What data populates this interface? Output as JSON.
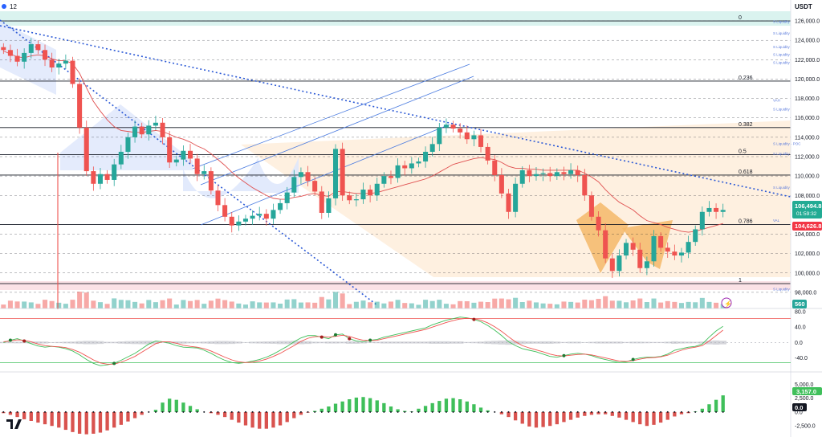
{
  "header": {
    "interval": "12",
    "currency": "USDT"
  },
  "colors": {
    "up": "#26a69a",
    "down": "#ef5350",
    "fib": "#131722",
    "liq": "#5b7bdc",
    "trend": "#2b59d6",
    "channel": "#4a7be0",
    "ema": "#e05050",
    "price_box": "#22ab94",
    "prev_box": "#f23645",
    "wedge_fill": "#dde6fb",
    "zone_fill": "#fdebd6",
    "pattern_fill": "#f4b868",
    "top_band": "#d3f1ec",
    "bottom_band": "#fadde2",
    "macd_pos": "#3fbf5a",
    "macd_neg": "#d9534f"
  },
  "chart_data": [
    {
      "type": "candlestick",
      "title": "",
      "ylim": [
        96500,
        127500
      ],
      "y_ticks": [
        "126,000.0",
        "124,000.0",
        "122,000.0",
        "120,000.0",
        "118,000.0",
        "116,000.0",
        "114,000.0",
        "112,000.0",
        "110,000.0",
        "108,000.0",
        "104,000.0",
        "102,000.0",
        "100,000.0",
        "98,000.0"
      ],
      "close": [
        123000,
        122400,
        121800,
        122700,
        123600,
        123000,
        122000,
        121200,
        121600,
        121900,
        119500,
        115000,
        110500,
        109200,
        110200,
        109600,
        111200,
        112500,
        114000,
        115100,
        114300,
        115200,
        115500,
        114000,
        111400,
        111700,
        112600,
        111800,
        110200,
        110500,
        108500,
        107000,
        105800,
        104900,
        105300,
        105600,
        105900,
        106100,
        105600,
        106500,
        107200,
        108300,
        109900,
        110400,
        109500,
        108400,
        106200,
        107700,
        112800,
        108000,
        107500,
        107600,
        108600,
        108000,
        109200,
        110000,
        109800,
        111100,
        110800,
        111300,
        111500,
        112500,
        113300,
        115000,
        115300,
        114900,
        114500,
        113800,
        114200,
        113000,
        111600,
        110100,
        108200,
        106300,
        109200,
        110600,
        110000,
        110200,
        110300,
        110000,
        110400,
        110200,
        110600,
        110100,
        108000,
        105800,
        104400,
        101500,
        100200,
        101800,
        103100,
        102400,
        100500,
        101200,
        103800,
        102600,
        102200,
        101800,
        102100,
        103200,
        104500,
        106300,
        106700,
        106300,
        106500
      ],
      "series": [
        {
          "name": "",
          "values": [
            122900,
            122600,
            122300,
            122200,
            122400,
            122500,
            122400,
            122100,
            121900,
            121900,
            121600,
            120600,
            119100,
            117700,
            116700,
            115800,
            115100,
            114700,
            114600,
            114500,
            114500,
            114600,
            114700,
            114600,
            114300,
            114000,
            113800,
            113500,
            113100,
            112800,
            112300,
            111700,
            111100,
            110400,
            109800,
            109300,
            108800,
            108400,
            108000,
            107700,
            107600,
            107600,
            107800,
            107900,
            108100,
            108200,
            108000,
            107900,
            108400,
            108400,
            108300,
            108200,
            108200,
            108200,
            108300,
            108500,
            108700,
            108900,
            109100,
            109300,
            109500,
            109700,
            110000,
            110400,
            110800,
            111200,
            111400,
            111600,
            111800,
            111900,
            111800,
            111700,
            111400,
            111000,
            110800,
            110800,
            110700,
            110700,
            110600,
            110600,
            110600,
            110600,
            110600,
            110600,
            110300,
            109900,
            109400,
            108600,
            107900,
            107300,
            106900,
            106500,
            105900,
            105400,
            105200,
            105000,
            104700,
            104500,
            104300,
            104200,
            104300,
            104500,
            104700,
            104900,
            105100
          ]
        }
      ],
      "fib_levels": [
        {
          "label": "0",
          "value": 126000
        },
        {
          "label": "0.236",
          "value": 119800
        },
        {
          "label": "0.382",
          "value": 115000
        },
        {
          "label": "0.5",
          "value": 112200
        },
        {
          "label": "0.618",
          "value": 110100
        },
        {
          "label": "0.786",
          "value": 105000
        },
        {
          "label": "1",
          "value": 98900
        }
      ],
      "annotations": [
        {
          "label": "S Liquidity",
          "value": 125700
        },
        {
          "label": "S Liquidity",
          "value": 124500
        },
        {
          "label": "S Liquidity",
          "value": 123100
        },
        {
          "label": "S Liquidity",
          "value": 122300
        },
        {
          "label": "S Liquidity",
          "value": 121500
        },
        {
          "label": "VAH",
          "value": 117600
        },
        {
          "label": "S Liquidity",
          "value": 116700
        },
        {
          "label": "S Liquidity - POC",
          "value": 113100
        },
        {
          "label": "S Liquidity",
          "value": 112100
        },
        {
          "label": "S Liquidity",
          "value": 108600
        },
        {
          "label": "VAL",
          "value": 105200
        },
        {
          "label": "S Liquidity",
          "value": 98100
        }
      ],
      "price_labels": {
        "current": "106,494.8",
        "countdown": "01:59:32",
        "previous": "104,626.8",
        "volume": "560"
      }
    },
    {
      "type": "line",
      "title": "",
      "ylim": [
        -70,
        80
      ],
      "y_ticks": [
        "80.0",
        "40.0",
        "0.0",
        "-40.0"
      ],
      "series": [
        {
          "name": "",
          "values": [
            0,
            6,
            10,
            4,
            -3,
            -9,
            -12,
            -10,
            -12,
            -16,
            -22,
            -32,
            -44,
            -54,
            -60,
            -58,
            -54,
            -46,
            -37,
            -28,
            -16,
            -4,
            4,
            2,
            -2,
            -8,
            -12,
            -13,
            -14,
            -20,
            -28,
            -38,
            -46,
            -52,
            -54,
            -52,
            -48,
            -44,
            -38,
            -30,
            -20,
            -10,
            2,
            12,
            18,
            18,
            14,
            10,
            20,
            22,
            10,
            4,
            2,
            6,
            8,
            14,
            18,
            22,
            26,
            30,
            34,
            38,
            46,
            52,
            58,
            62,
            66,
            64,
            60,
            54,
            44,
            32,
            18,
            2,
            -8,
            -16,
            -20,
            -24,
            -30,
            -36,
            -38,
            -34,
            -30,
            -28,
            -30,
            -34,
            -40,
            -44,
            -48,
            -52,
            -50,
            -44,
            -40,
            -38,
            -38,
            -36,
            -30,
            -20,
            -16,
            -12,
            -10,
            -4,
            14,
            30,
            42
          ]
        },
        {
          "name": "",
          "values": [
            2,
            4,
            7,
            6,
            2,
            -4,
            -8,
            -10,
            -11,
            -13,
            -18,
            -25,
            -35,
            -45,
            -53,
            -56,
            -56,
            -51,
            -44,
            -36,
            -25,
            -14,
            -3,
            2,
            2,
            -2,
            -7,
            -10,
            -12,
            -16,
            -22,
            -30,
            -38,
            -45,
            -50,
            -52,
            -51,
            -48,
            -43,
            -36,
            -28,
            -18,
            -8,
            3,
            11,
            15,
            16,
            14,
            16,
            19,
            16,
            10,
            6,
            5,
            6,
            10,
            14,
            18,
            22,
            26,
            30,
            34,
            40,
            46,
            52,
            57,
            61,
            63,
            62,
            58,
            51,
            41,
            29,
            15,
            2,
            -8,
            -14,
            -19,
            -24,
            -30,
            -34,
            -35,
            -33,
            -31,
            -30,
            -32,
            -36,
            -40,
            -44,
            -48,
            -49,
            -47,
            -43,
            -40,
            -39,
            -37,
            -33,
            -26,
            -20,
            -15,
            -12,
            -8,
            4,
            18,
            32
          ]
        }
      ],
      "guides": [
        62,
        -52
      ]
    },
    {
      "type": "bar",
      "title": "",
      "ylim": [
        -4200,
        6200
      ],
      "y_ticks": [
        "5,000.0",
        "2,500.0",
        "0.0",
        "-2,500.0"
      ],
      "values": [
        -200,
        -500,
        -900,
        -1300,
        -1600,
        -1900,
        -2200,
        -2500,
        -2800,
        -3200,
        -3600,
        -3900,
        -4000,
        -3900,
        -3700,
        -3300,
        -2800,
        -2300,
        -1700,
        -1100,
        -500,
        0,
        400,
        1700,
        2400,
        2200,
        1700,
        1100,
        500,
        0,
        -200,
        -500,
        -900,
        -1400,
        -1900,
        -2400,
        -2800,
        -3000,
        -3000,
        -2800,
        -2400,
        -1800,
        -1100,
        -500,
        -100,
        200,
        600,
        1000,
        1500,
        1900,
        2300,
        2600,
        2700,
        2500,
        2100,
        1600,
        1000,
        500,
        200,
        100,
        600,
        1100,
        1600,
        2000,
        2400,
        2500,
        2300,
        1900,
        1400,
        800,
        300,
        0,
        -400,
        -900,
        -1500,
        -2100,
        -2600,
        -2800,
        -2700,
        -2500,
        -2200,
        -1800,
        -1400,
        -1000,
        -700,
        -500,
        -400,
        -400,
        -700,
        -1000,
        -1400,
        -1800,
        -2200,
        -2500,
        -2300,
        -1900,
        -1400,
        -800,
        -400,
        -200,
        100,
        600,
        1400,
        2200,
        3000
      ],
      "labels": {
        "current": "3,157.0",
        "zero": "0.0"
      }
    }
  ]
}
